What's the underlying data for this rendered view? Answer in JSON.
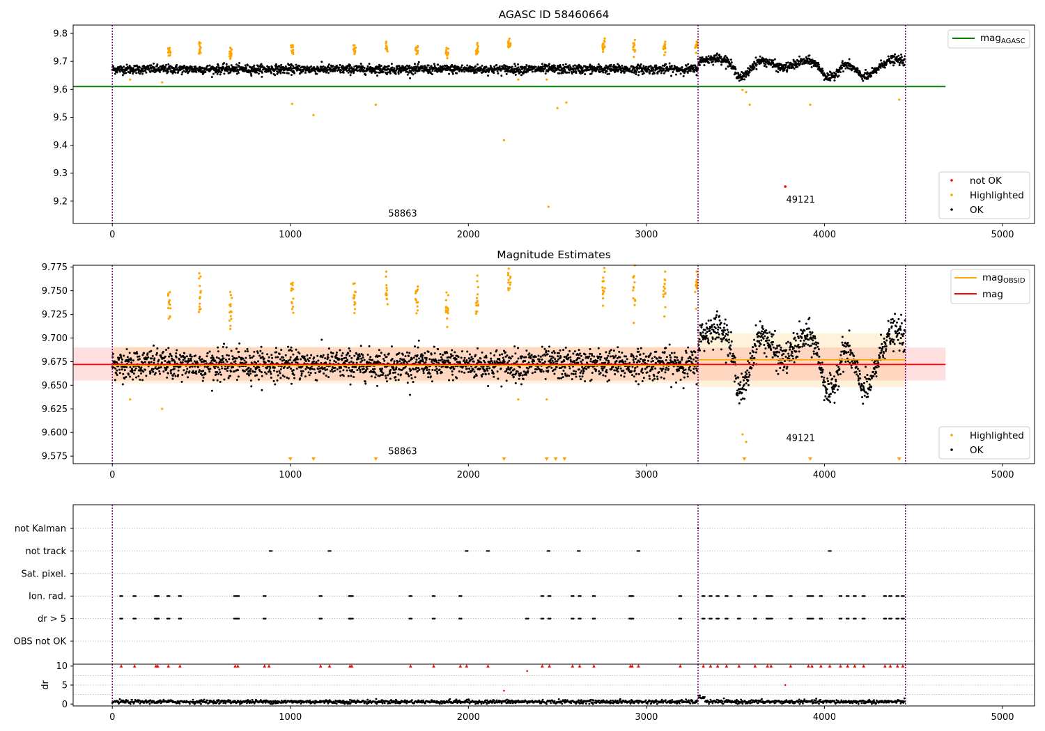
{
  "colors": {
    "ok": "#000000",
    "highlighted": "#ffa500",
    "not_ok": "#ff0000",
    "agasc_line": "#008000",
    "mag_line": "#ff0000",
    "mag_obsid": "#ffa500",
    "obs_boundary": "#800080",
    "grid": "#b0b0b0"
  },
  "chart_data": [
    {
      "id": "top",
      "type": "scatter",
      "title": "AGASC ID 58460664",
      "xlim": [
        -220,
        5180
      ],
      "ylim": [
        9.12,
        9.83
      ],
      "xticks": [
        0,
        1000,
        2000,
        3000,
        4000,
        5000
      ],
      "yticks": [
        9.2,
        9.3,
        9.4,
        9.5,
        9.6,
        9.7,
        9.8
      ],
      "ytick_labels": [
        "9.2",
        "9.3",
        "9.4",
        "9.5",
        "9.6",
        "9.7",
        "9.8"
      ],
      "obs_boundaries": [
        0,
        3290,
        4455
      ],
      "obs_labels": [
        {
          "text": "58863",
          "x": 1550,
          "y": 9.145
        },
        {
          "text": "49121",
          "x": 3785,
          "y": 9.195
        }
      ],
      "ref_lines": [
        {
          "name": "mag_AGASC",
          "y": 9.61,
          "x0": -220,
          "x1": 4680,
          "color": "#008000"
        }
      ],
      "segments": [
        {
          "x0": 0,
          "x1": 3290,
          "base": 9.672,
          "wave": [],
          "scatter": 0.008
        },
        {
          "x0": 3290,
          "x1": 4455,
          "base": 9.685,
          "wave": [
            [
              3430,
              120,
              0.028
            ],
            [
              3535,
              45,
              -0.065
            ],
            [
              3680,
              90,
              0.02
            ],
            [
              3760,
              60,
              -0.025
            ],
            [
              3920,
              90,
              0.018
            ],
            [
              4030,
              45,
              -0.06
            ],
            [
              4120,
              70,
              0.018
            ],
            [
              4230,
              60,
              -0.05
            ],
            [
              4380,
              90,
              0.022
            ]
          ],
          "scatter": 0.008
        }
      ],
      "highlighted_clusters": [
        {
          "x": 320,
          "y": 9.735
        },
        {
          "x": 490,
          "y": 9.745
        },
        {
          "x": 665,
          "y": 9.727
        },
        {
          "x": 1010,
          "y": 9.748
        },
        {
          "x": 1360,
          "y": 9.74
        },
        {
          "x": 1540,
          "y": 9.745
        },
        {
          "x": 1710,
          "y": 9.747
        },
        {
          "x": 1880,
          "y": 9.73
        },
        {
          "x": 2050,
          "y": 9.74
        },
        {
          "x": 2230,
          "y": 9.752
        },
        {
          "x": 2760,
          "y": 9.752
        },
        {
          "x": 2930,
          "y": 9.752
        },
        {
          "x": 3100,
          "y": 9.745
        },
        {
          "x": 3280,
          "y": 9.755
        }
      ],
      "highlighted_points": [
        [
          100,
          9.635
        ],
        [
          280,
          9.625
        ],
        [
          1010,
          9.548
        ],
        [
          1130,
          9.508
        ],
        [
          1480,
          9.545
        ],
        [
          2200,
          9.418
        ],
        [
          2450,
          9.18
        ],
        [
          2500,
          9.533
        ],
        [
          2550,
          9.553
        ],
        [
          3580,
          9.545
        ],
        [
          3920,
          9.545
        ],
        [
          4420,
          9.563
        ],
        [
          3540,
          9.598
        ],
        [
          3560,
          9.59
        ],
        [
          2440,
          9.635
        ],
        [
          2280,
          9.635
        ]
      ],
      "not_ok_points": [
        [
          3780,
          9.252
        ]
      ],
      "legend_top": {
        "entries": [
          "mag_AGASC"
        ]
      },
      "legend_bottom": {
        "entries": [
          "not OK",
          "Highlighted",
          "OK"
        ]
      }
    },
    {
      "id": "middle",
      "type": "scatter",
      "title": "Magnitude Estimates",
      "xlim": [
        -220,
        5180
      ],
      "ylim": [
        9.567,
        9.777
      ],
      "xticks": [
        0,
        1000,
        2000,
        3000,
        4000,
        5000
      ],
      "yticks": [
        9.575,
        9.6,
        9.625,
        9.65,
        9.675,
        9.7,
        9.725,
        9.75,
        9.775
      ],
      "ytick_labels": [
        "9.575",
        "9.600",
        "9.625",
        "9.650",
        "9.675",
        "9.700",
        "9.725",
        "9.750",
        "9.775"
      ],
      "obs_boundaries": [
        0,
        3290,
        4455
      ],
      "obs_labels": [
        {
          "text": "58863",
          "x": 1550,
          "y": 9.577
        },
        {
          "text": "49121",
          "x": 3785,
          "y": 9.591
        }
      ],
      "mag": {
        "y": 9.672,
        "band": [
          9.655,
          9.69
        ],
        "x0": -220,
        "x1": 4680
      },
      "mag_obsid": [
        {
          "x0": 0,
          "x1": 3290,
          "y": 9.671,
          "band": [
            9.652,
            9.691
          ]
        },
        {
          "x0": 3290,
          "x1": 4455,
          "y": 9.677,
          "band": [
            9.648,
            9.705
          ]
        }
      ],
      "down_markers_x": [
        1000,
        1130,
        1480,
        2200,
        2440,
        2490,
        2540,
        3550,
        3920,
        4420
      ],
      "legend_top": {
        "entries": [
          "mag_OBSID",
          "mag"
        ]
      },
      "legend_bottom": {
        "entries": [
          "Highlighted",
          "OK"
        ]
      }
    },
    {
      "id": "flags",
      "type": "scatter",
      "xlim": [
        -220,
        5180
      ],
      "categories": [
        "not Kalman",
        "not track",
        "Sat. pixel.",
        "Ion. rad.",
        "dr > 5",
        "OBS not OK"
      ],
      "obs_boundaries": [
        0,
        3290,
        4455
      ],
      "not_track_x": [
        890,
        1220,
        1990,
        2110,
        2450,
        2620,
        2955,
        4030
      ],
      "ion_rad_x": [
        50,
        125,
        245,
        255,
        315,
        380,
        690,
        705,
        855,
        1170,
        1335,
        1345,
        1675,
        1805,
        1955,
        2415,
        2455,
        2585,
        2625,
        2705,
        2910,
        2920,
        3190,
        3320,
        3360,
        3400,
        3450,
        3520,
        3610,
        3680,
        3700,
        3810,
        3910,
        3930,
        3980,
        4090,
        4130,
        4170,
        4220,
        4340,
        4370,
        4410,
        4440
      ],
      "dr5_x": [
        50,
        125,
        245,
        255,
        315,
        380,
        690,
        705,
        855,
        1170,
        1335,
        1345,
        1675,
        1805,
        1955,
        2330,
        2415,
        2455,
        2585,
        2625,
        2705,
        2910,
        2920,
        3190,
        3320,
        3360,
        3400,
        3450,
        3520,
        3610,
        3680,
        3700,
        3810,
        3910,
        3930,
        3980,
        4090,
        4130,
        4170,
        4220,
        4340,
        4370,
        4410,
        4440
      ]
    },
    {
      "id": "dr",
      "type": "scatter",
      "ylabel": "dr",
      "xlim": [
        -220,
        5180
      ],
      "ylim": [
        -0.5,
        10.5
      ],
      "xticks": [
        0,
        1000,
        2000,
        3000,
        4000,
        5000
      ],
      "yticks": [
        0,
        5,
        10
      ],
      "ytick_labels": [
        "0",
        "5",
        "10"
      ],
      "obs_boundaries": [
        0,
        3290,
        4455
      ],
      "red_markers_at_10_x": [
        50,
        125,
        245,
        255,
        315,
        380,
        690,
        705,
        855,
        880,
        1170,
        1220,
        1335,
        1345,
        1675,
        1805,
        1955,
        1990,
        2110,
        2415,
        2455,
        2585,
        2625,
        2705,
        2910,
        2920,
        2955,
        3190,
        3320,
        3360,
        3400,
        3450,
        3520,
        3610,
        3680,
        3700,
        3810,
        3910,
        3930,
        3980,
        4030,
        4090,
        4130,
        4170,
        4220,
        4340,
        4370,
        4410,
        4440
      ],
      "red_points": [
        [
          2200,
          3.5
        ],
        [
          2330,
          8.7
        ],
        [
          3780,
          5.0
        ]
      ]
    }
  ],
  "legend_labels": {
    "mag_agasc_main": "mag",
    "mag_agasc_sub": "AGASC",
    "mag_obsid_main": "mag",
    "mag_obsid_sub": "OBSID",
    "mag": "mag",
    "not_ok": "not OK",
    "highlighted": "Highlighted",
    "ok": "OK"
  }
}
